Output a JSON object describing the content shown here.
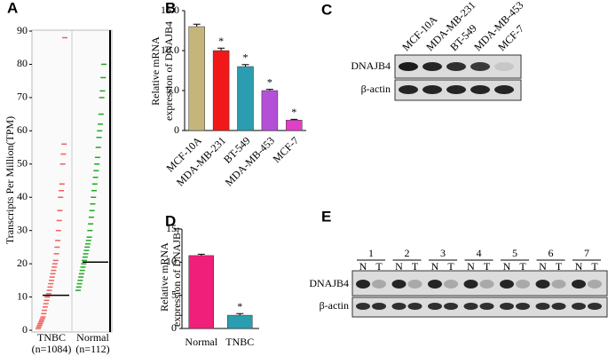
{
  "chart_data": [
    {
      "panel": "A",
      "type": "strip",
      "y_label": "Transcripts Per Million(TPM)",
      "ylim": [
        0,
        90
      ],
      "yticks": [
        0,
        10,
        20,
        30,
        40,
        50,
        60,
        70,
        80,
        90
      ],
      "series": [
        {
          "name": "TNBC",
          "sublabel": "(n=1084)",
          "color": "#f0605a",
          "median": 10.5,
          "values": [
            0.5,
            1,
            1.5,
            2,
            2.5,
            3,
            3.5,
            4,
            5,
            6,
            7,
            8,
            9,
            10,
            10.5,
            11,
            12,
            13,
            14,
            15,
            16,
            17,
            18,
            19,
            20,
            21,
            23,
            25,
            27,
            30,
            33,
            36,
            40,
            42,
            44,
            50,
            53,
            56,
            88
          ]
        },
        {
          "name": "Normal",
          "sublabel": "(n=112)",
          "color": "#1fa81f",
          "median": 20.5,
          "values": [
            12,
            13,
            14,
            15,
            16,
            17,
            18,
            19,
            20,
            21,
            22,
            23,
            24,
            25,
            26,
            27,
            28,
            30,
            32,
            34,
            36,
            38,
            40,
            42,
            44,
            46,
            48,
            50,
            52,
            55,
            58,
            60,
            62,
            65,
            70,
            72,
            76,
            80
          ]
        }
      ]
    },
    {
      "panel": "B",
      "type": "bar",
      "y_label": [
        "Relative mRNA",
        "expression of DNAJB4"
      ],
      "categories": [
        "MCF-10A",
        "MDA-MB-231",
        "BT-549",
        "MDA-MB-453",
        "MCF-7"
      ],
      "values": [
        13,
        10,
        8,
        5,
        1.3
      ],
      "errors": [
        0.3,
        0.3,
        0.25,
        0.15,
        0.1
      ],
      "colors": [
        "#c4b67a",
        "#f01818",
        "#2a9db0",
        "#b44fd8",
        "#e040c8"
      ],
      "significance": [
        null,
        "*",
        "*",
        "*",
        "*"
      ],
      "ylim": [
        0,
        15
      ],
      "yticks": [
        0,
        {
          "value": 5,
          "label": "5.0"
        },
        {
          "value": 10,
          "label": "10.0"
        },
        {
          "value": 15,
          "label": "15.0"
        }
      ]
    },
    {
      "panel": "D",
      "type": "bar",
      "y_label": [
        "Relative mRNA",
        "expression of DNAJB4"
      ],
      "categories": [
        "Normal",
        "TNBC"
      ],
      "values": [
        11,
        2
      ],
      "errors": [
        0.2,
        0.25
      ],
      "colors": [
        "#f0207a",
        "#2a9db0"
      ],
      "significance": [
        null,
        "*"
      ],
      "ylim": [
        0,
        15
      ],
      "yticks": [
        0,
        5,
        10,
        15
      ]
    }
  ],
  "blots": [
    {
      "panel": "C",
      "lanes": [
        "MCF-10A",
        "MDA-MB-231",
        "BT-549",
        "MDA-MB-453",
        "MCF-7"
      ],
      "rows": [
        "DNAJB4",
        "β-actin"
      ]
    },
    {
      "panel": "E",
      "groups": [
        1,
        2,
        3,
        4,
        5,
        6,
        7
      ],
      "lane_labels": [
        "N",
        "T"
      ],
      "rows": [
        "DNAJB4",
        "β-actin"
      ]
    }
  ]
}
